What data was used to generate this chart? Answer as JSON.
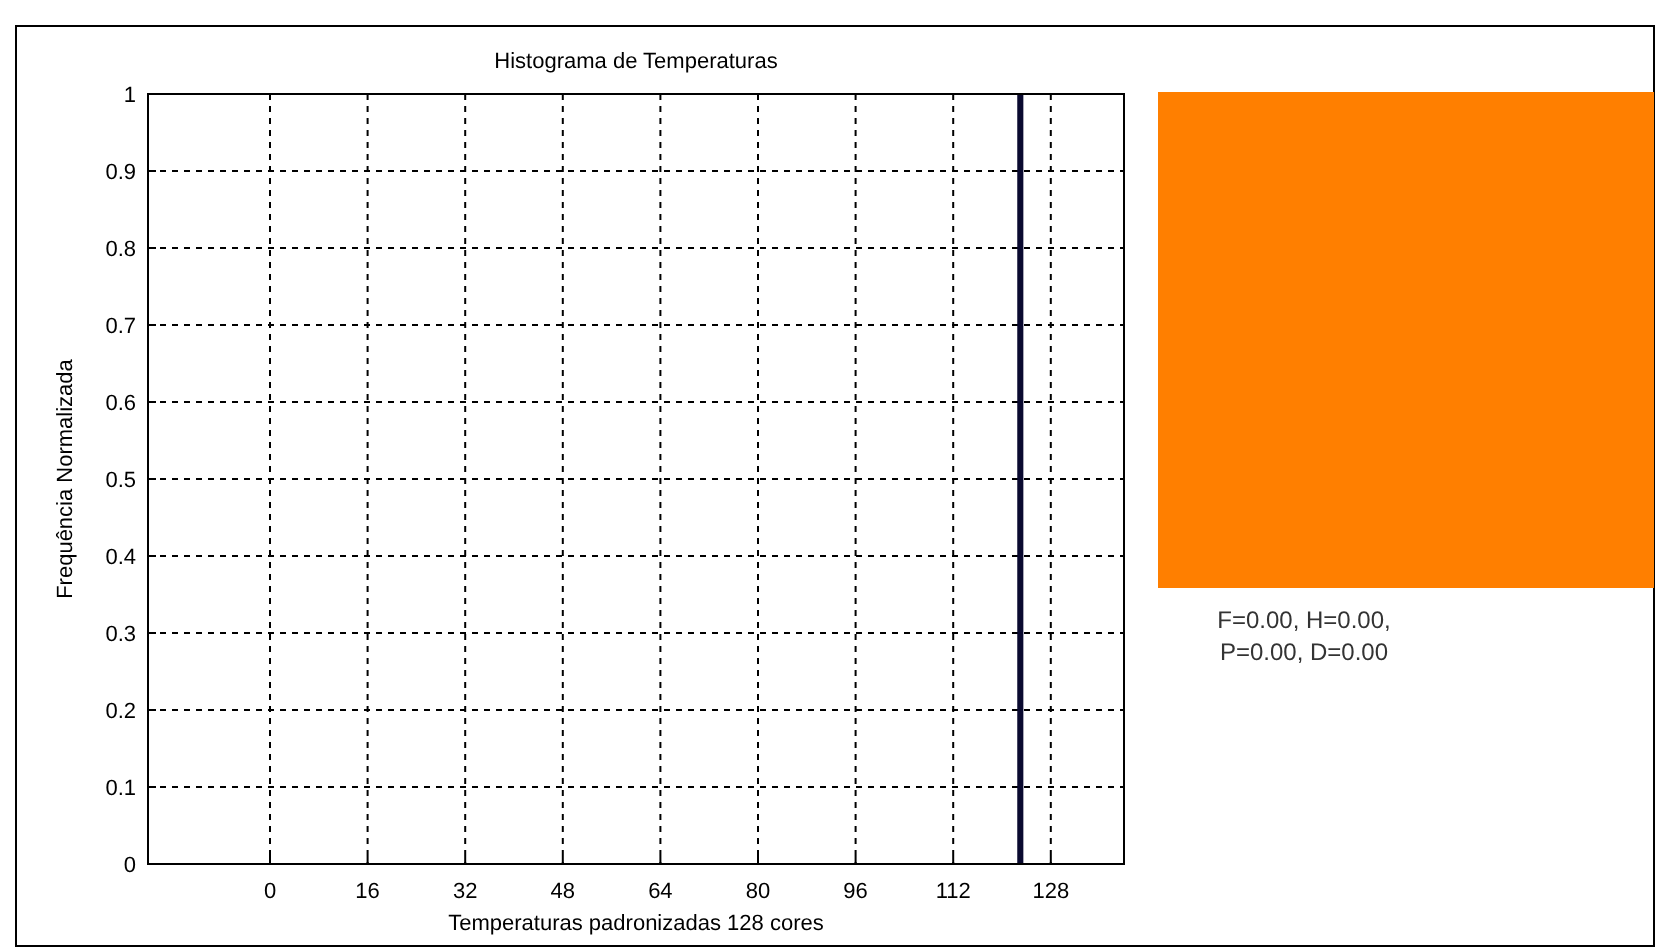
{
  "chart_data": {
    "type": "histogram",
    "title": "Histograma de Temperaturas",
    "xlabel": "Temperaturas padronizadas 128 cores",
    "ylabel": "Frequência Normalizada",
    "bins": [
      122.5,
      123.5
    ],
    "values": [
      1
    ],
    "color": "#0a0a30",
    "xlim": [
      -20,
      140
    ],
    "xticks": [
      0,
      16,
      32,
      48,
      64,
      80,
      96,
      112,
      128
    ],
    "ylim": [
      0,
      1
    ],
    "yticks": [
      0,
      0.1,
      0.2,
      0.3,
      0.4,
      0.5,
      0.6,
      0.7,
      0.8,
      0.9,
      1
    ],
    "grid": true,
    "annotations": [
      "F=0.00, H=0.00,",
      "P=0.00, D=0.00"
    ]
  }
}
